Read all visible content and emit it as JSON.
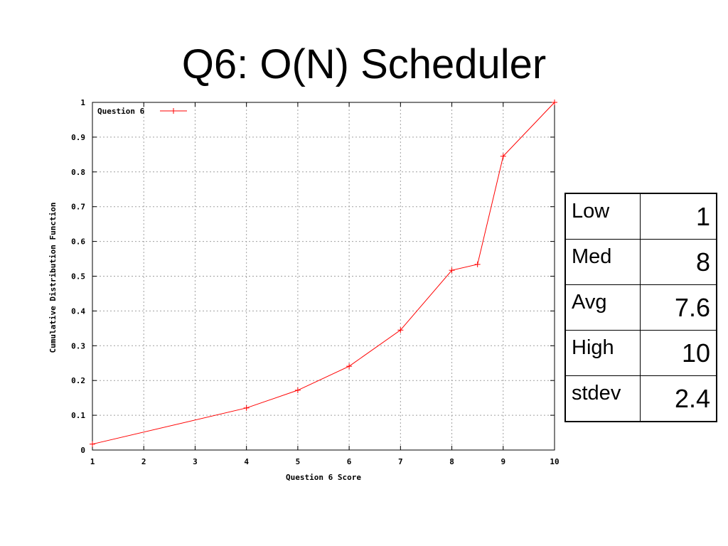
{
  "slide": {
    "title": "Q6: O(N) Scheduler"
  },
  "chart_data": {
    "type": "line",
    "xlabel": "Question 6 Score",
    "ylabel": "Cumulative Distribution Function",
    "xlim": [
      1,
      10
    ],
    "ylim": [
      0,
      1
    ],
    "xticks": [
      1,
      2,
      3,
      4,
      5,
      6,
      7,
      8,
      9,
      10
    ],
    "yticks": [
      0,
      0.1,
      0.2,
      0.3,
      0.4,
      0.5,
      0.6,
      0.7,
      0.8,
      0.9,
      1
    ],
    "ytick_labels": [
      "0",
      "0.1",
      "0.2",
      "0.3",
      "0.4",
      "0.5",
      "0.6",
      "0.7",
      "0.8",
      "0.9",
      "1"
    ],
    "grid": true,
    "legend_position": "top-left",
    "series": [
      {
        "name": "Question 6",
        "color": "#ff0000",
        "marker": "plus",
        "x": [
          1,
          4,
          5,
          6,
          7,
          8,
          8.5,
          9,
          10
        ],
        "y": [
          0.017,
          0.121,
          0.172,
          0.241,
          0.345,
          0.517,
          0.534,
          0.845,
          1.0
        ]
      }
    ]
  },
  "stats": [
    {
      "label": "Low",
      "value": "1"
    },
    {
      "label": "Med",
      "value": "8"
    },
    {
      "label": "Avg",
      "value": "7.6"
    },
    {
      "label": "High",
      "value": "10"
    },
    {
      "label": "stdev",
      "value": "2.4"
    }
  ]
}
